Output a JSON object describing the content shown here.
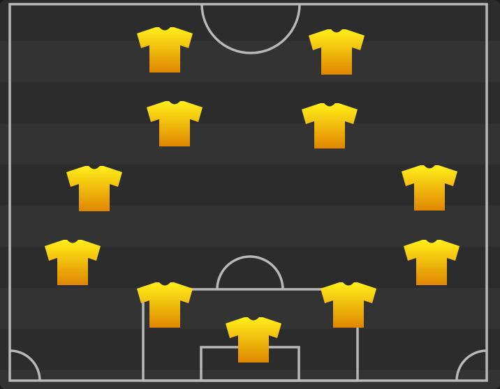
{
  "pitch": {
    "line_color": "#b8b8b8",
    "stripe_colors": [
      "#2c2c2c",
      "#333333"
    ]
  },
  "formation": {
    "jersey_icon": "jersey-icon",
    "jersey_colors": {
      "top": "#ffef1a",
      "bottom": "#e08600"
    },
    "players": [
      {
        "role": "attacker-left"
      },
      {
        "role": "attacker-right"
      },
      {
        "role": "attacking-mid-left"
      },
      {
        "role": "attacking-mid-right"
      },
      {
        "role": "wide-mid-left"
      },
      {
        "role": "wide-mid-right"
      },
      {
        "role": "fullback-left"
      },
      {
        "role": "fullback-right"
      },
      {
        "role": "centre-back-left"
      },
      {
        "role": "centre-back-right"
      },
      {
        "role": "goalkeeper"
      }
    ]
  }
}
